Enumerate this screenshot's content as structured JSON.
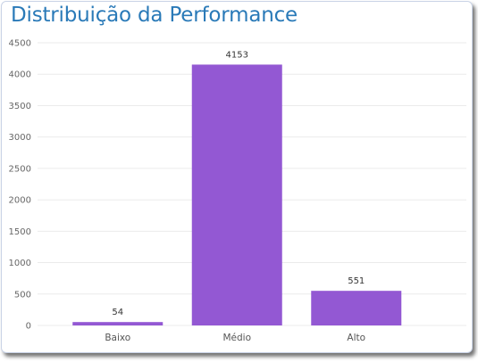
{
  "chart_data": {
    "type": "bar",
    "title": "Distribuição da Performance",
    "categories": [
      "Baixo",
      "Médio",
      "Alto"
    ],
    "values": [
      54,
      4153,
      551
    ],
    "data_labels": [
      "54",
      "4153",
      "551"
    ],
    "ylim": [
      0,
      4500
    ],
    "yticks": [
      0,
      500,
      1000,
      1500,
      2000,
      2500,
      3000,
      3500,
      4000,
      4500
    ],
    "xlabel": "",
    "ylabel": "",
    "grid": true,
    "bar_color": "#9358d3",
    "title_color": "#2a7ab8"
  }
}
